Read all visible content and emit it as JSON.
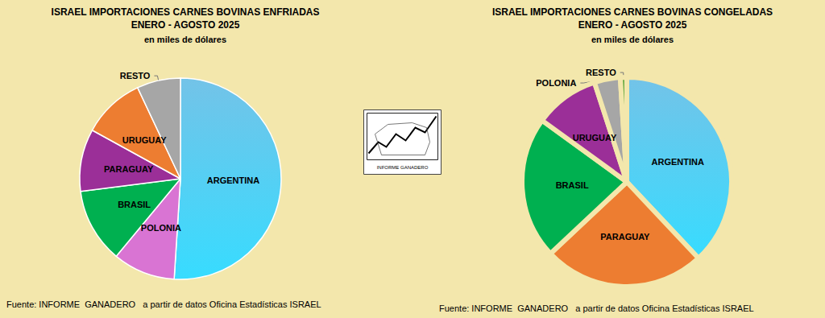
{
  "chart_data": [
    {
      "type": "pie",
      "title": "ISRAEL IMPORTACIONES CARNES BOVINAS ENFRIADAS\nENERO - AGOSTO 2025",
      "subtitle": "en miles de dólares",
      "categories": [
        "ARGENTINA",
        "POLONIA",
        "BRASIL",
        "PARAGUAY",
        "URUGUAY",
        "RESTO"
      ],
      "values": [
        51,
        10,
        12,
        10,
        10,
        7
      ],
      "colors": [
        "#29a3dc",
        "#d974d3",
        "#00b050",
        "#9b2f98",
        "#ed7d31",
        "#a6a6a6"
      ],
      "source": "Fuente: INFORME  GANADERO   a partir de datos Oficina Estadísticas ISRAEL"
    },
    {
      "type": "pie",
      "title": "ISRAEL IMPORTACIONES CARNES BOVINAS CONGELADAS\nENERO - AGOSTO 2025",
      "subtitle": "en miles de dólares",
      "categories": [
        "ARGENTINA",
        "PARAGUAY",
        "BRASIL",
        "URUGUAY",
        "POLONIA",
        "RESTO"
      ],
      "values": [
        38,
        25,
        22,
        10,
        4,
        1
      ],
      "colors": [
        "#29a3dc",
        "#ed7d31",
        "#00b050",
        "#9b2f98",
        "#a6a6a6",
        "#70ad47"
      ],
      "source": "Fuente: INFORME  GANADERO   a partir de datos Oficina Estadísticas ISRAEL"
    }
  ],
  "logo_text": "INFORME GANADERO"
}
